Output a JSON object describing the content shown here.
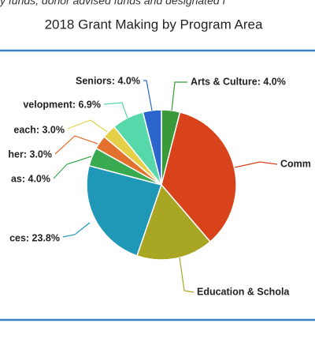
{
  "header_text": "y funds, donor advised funds and designated f",
  "chart_data": {
    "type": "pie",
    "title": "2018 Grant Making by Program Area",
    "labels": [
      "Arts & Culture: 4.0%",
      "Comm",
      "Education & Schola",
      "ces: 23.8%",
      "as: 4.0%",
      "her: 3.0%",
      "each: 3.0%",
      "velopment: 6.9%",
      "Seniors: 4.0%"
    ],
    "values": [
      4.0,
      34.7,
      16.6,
      23.8,
      4.0,
      3.0,
      3.0,
      6.9,
      4.0
    ],
    "colors": [
      "#3a9a3a",
      "#d8431c",
      "#a8a622",
      "#1e98b6",
      "#3aaa50",
      "#e2712e",
      "#e6d048",
      "#56d8aa",
      "#2c66cc"
    ]
  }
}
